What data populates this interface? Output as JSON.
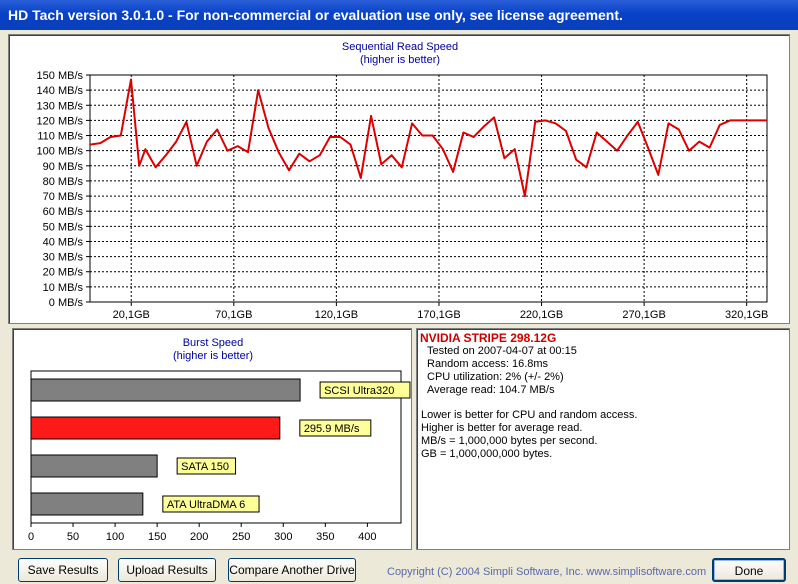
{
  "window": {
    "title": "HD Tach version 3.0.1.0  - For non-commercial or evaluation use only, see license agreement."
  },
  "read_chart": {
    "title_line1": "Sequential Read Speed",
    "title_line2": "(higher is better)"
  },
  "burst_chart": {
    "title_line1": "Burst Speed",
    "title_line2": "(higher is better)"
  },
  "info": {
    "drive_name": "NVIDIA  STRIPE  298.12G",
    "tested_on": "Tested on 2007-04-07 at 00:15",
    "random_access": "Random access: 16.8ms",
    "cpu_utilization": "CPU utilization: 2% (+/- 2%)",
    "average_read": "Average read: 104.7 MB/s",
    "note1": "Lower is better for CPU and random access.",
    "note2": "Higher is better for average read.",
    "note3": "MB/s = 1,000,000 bytes per second.",
    "note4": "GB = 1,000,000,000 bytes.",
    "drive_name_color": "#cc0000"
  },
  "buttons": {
    "save": "Save Results",
    "upload": "Upload Results",
    "compare": "Compare Another Drive",
    "done": "Done"
  },
  "footer": {
    "copyright": "Copyright (C) 2004 Simpli Software, Inc. www.simplisoftware.com"
  },
  "colors": {
    "line": "#dd0000",
    "accent_bar": "#ff1a1a",
    "gray_bar": "#808080",
    "label_bg": "#ffff99"
  },
  "chart_data": [
    {
      "type": "line",
      "title": "Sequential Read Speed",
      "subtitle": "(higher is better)",
      "ylim": [
        0,
        150
      ],
      "xlim": [
        0,
        330
      ],
      "y_tick_labels": [
        "150 MB/s",
        "140 MB/s",
        "130 MB/s",
        "120 MB/s",
        "110 MB/s",
        "100 MB/s",
        "90 MB/s",
        "80 MB/s",
        "70 MB/s",
        "60 MB/s",
        "50 MB/s",
        "40 MB/s",
        "30 MB/s",
        "20 MB/s",
        "10 MB/s",
        "0 MB/s"
      ],
      "y_tick_values": [
        150,
        140,
        130,
        120,
        110,
        100,
        90,
        80,
        70,
        60,
        50,
        40,
        30,
        20,
        10,
        0
      ],
      "x_tick_labels": [
        "20,1GB",
        "70,1GB",
        "120,1GB",
        "170,1GB",
        "220,1GB",
        "270,1GB",
        "320,1GB"
      ],
      "x_tick_values": [
        20.1,
        70.1,
        120.1,
        170.1,
        220.1,
        270.1,
        320.1
      ],
      "grid": true,
      "series": [
        {
          "x": [
            0,
            5,
            10,
            15,
            20,
            24,
            27,
            32,
            37,
            42,
            47,
            52,
            57,
            62,
            67,
            72,
            77,
            82,
            87,
            92,
            97,
            102,
            107,
            112,
            117,
            122,
            127,
            132,
            137,
            142,
            147,
            152,
            157,
            162,
            167,
            172,
            177,
            182,
            187,
            192,
            197,
            202,
            207,
            212,
            217,
            222,
            227,
            232,
            237,
            242,
            247,
            252,
            257,
            262,
            267,
            272,
            277,
            282,
            287,
            292,
            297,
            302,
            307,
            312,
            317,
            322,
            327,
            330
          ],
          "y": [
            104,
            105,
            109,
            110,
            147,
            90,
            101,
            89,
            97,
            106,
            119,
            90,
            106,
            114,
            100,
            103,
            99,
            140,
            115,
            99,
            87,
            98,
            93,
            97,
            109,
            109,
            104,
            82,
            123,
            91,
            97,
            89,
            118,
            110,
            110,
            101,
            86,
            112,
            109,
            116,
            122,
            95,
            101,
            70,
            119,
            120,
            118,
            113,
            94,
            89,
            112,
            106,
            100,
            110,
            119,
            102,
            84,
            118,
            114,
            100,
            106,
            102,
            117,
            120,
            120,
            120,
            120,
            120
          ]
        }
      ]
    },
    {
      "type": "bar",
      "title": "Burst Speed",
      "subtitle": "(higher is better)",
      "xlim": [
        0,
        440
      ],
      "x_tick_labels": [
        "0",
        "50",
        "100",
        "150",
        "200",
        "250",
        "300",
        "350",
        "400"
      ],
      "x_tick_values": [
        0,
        50,
        100,
        150,
        200,
        250,
        300,
        350,
        400
      ],
      "categories": [
        "SCSI Ultra320",
        "295.9 MB/s",
        "SATA 150",
        "ATA UltraDMA 6"
      ],
      "values": [
        320,
        295.9,
        150,
        133
      ],
      "highlight_index": 1
    }
  ]
}
